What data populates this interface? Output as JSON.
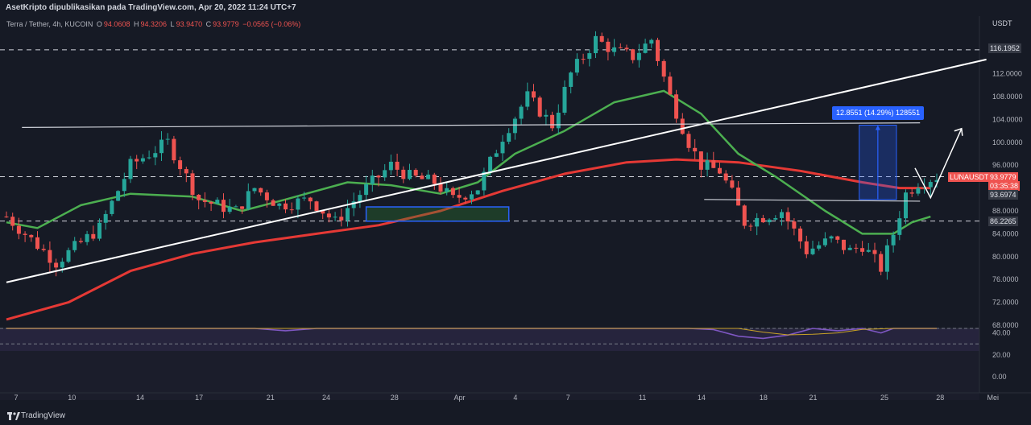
{
  "header": {
    "published_text": "AsetKripto dipublikasikan pada TradingView.com, Apr 20, 2022 11:24 UTC+7"
  },
  "legend": {
    "symbol": "Terra / Tether, 4h, KUCOIN",
    "open_label": "O",
    "open": "94.0608",
    "high_label": "H",
    "high": "94.3206",
    "low_label": "L",
    "low": "93.9470",
    "close_label": "C",
    "close": "93.9779",
    "change": "−0.0565 (−0.06%)"
  },
  "axis": {
    "currency": "USDT"
  },
  "price_labels": {
    "level_high": "116.1952",
    "current_symbol": "LUNAUSDT",
    "current_price": "93.9779",
    "countdown": "03:35:38",
    "level_mid": "93.6974",
    "level_low": "86.2265"
  },
  "measure": {
    "text": "12.8551 (14.29%) 128551"
  },
  "footer": {
    "brand": "TradingView"
  },
  "colors": {
    "background": "#161a25",
    "up": "#26a69a",
    "down": "#ef5350",
    "ma_green": "#4caf50",
    "ma_red": "#e53935",
    "rsi": "#7e57c2",
    "measure": "#2962ff"
  },
  "chart_data": {
    "type": "candlestick",
    "price_axis": {
      "min": 68,
      "max": 120,
      "ticks": [
        "112.0000",
        "108.0000",
        "104.0000",
        "100.0000",
        "96.0000",
        "92.0000",
        "88.0000",
        "84.0000",
        "80.0000",
        "76.0000",
        "72.0000",
        "68.0000"
      ]
    },
    "rsi_axis": {
      "ticks": [
        "40.00",
        "20.00",
        "0.00"
      ],
      "bands": [
        30,
        70
      ]
    },
    "x_axis": {
      "labels": [
        "7",
        "10",
        "14",
        "17",
        "21",
        "24",
        "28",
        "Apr",
        "4",
        "7",
        "11",
        "14",
        "18",
        "21",
        "25",
        "28",
        "Mei"
      ]
    },
    "price_path": [
      [
        0,
        87
      ],
      [
        8,
        79
      ],
      [
        15,
        85
      ],
      [
        20,
        96
      ],
      [
        26,
        100
      ],
      [
        31,
        90
      ],
      [
        37,
        88
      ],
      [
        40,
        92
      ],
      [
        44,
        89
      ],
      [
        49,
        90
      ],
      [
        53,
        86
      ],
      [
        57,
        91
      ],
      [
        62,
        96
      ],
      [
        65,
        94
      ],
      [
        69,
        93
      ],
      [
        72,
        90
      ],
      [
        76,
        92
      ],
      [
        80,
        101
      ],
      [
        84,
        108
      ],
      [
        88,
        103
      ],
      [
        91,
        112
      ],
      [
        95,
        118
      ],
      [
        98,
        116
      ],
      [
        101,
        115
      ],
      [
        104,
        118
      ],
      [
        107,
        108
      ],
      [
        110,
        100
      ],
      [
        112,
        96
      ],
      [
        115,
        95
      ],
      [
        117,
        91
      ],
      [
        119,
        86
      ],
      [
        122,
        87
      ],
      [
        125,
        88
      ],
      [
        129,
        81
      ],
      [
        133,
        83
      ],
      [
        136,
        81
      ],
      [
        138,
        82
      ],
      [
        141,
        78
      ],
      [
        143,
        84
      ],
      [
        145,
        91
      ],
      [
        147,
        93
      ],
      [
        150,
        94
      ]
    ],
    "ma_green_path": [
      [
        0,
        86
      ],
      [
        5,
        85
      ],
      [
        12,
        89
      ],
      [
        20,
        91
      ],
      [
        30,
        90.5
      ],
      [
        38,
        88
      ],
      [
        45,
        90
      ],
      [
        55,
        93
      ],
      [
        62,
        92.5
      ],
      [
        70,
        91
      ],
      [
        76,
        93
      ],
      [
        82,
        98
      ],
      [
        90,
        102
      ],
      [
        98,
        107
      ],
      [
        106,
        109
      ],
      [
        112,
        105
      ],
      [
        118,
        98
      ],
      [
        124,
        94
      ],
      [
        132,
        88
      ],
      [
        138,
        84
      ],
      [
        143,
        84
      ],
      [
        146,
        86
      ],
      [
        149,
        87
      ]
    ],
    "ma_red_path": [
      [
        0,
        69
      ],
      [
        10,
        72
      ],
      [
        20,
        77.5
      ],
      [
        30,
        80.5
      ],
      [
        40,
        82.5
      ],
      [
        50,
        84
      ],
      [
        60,
        85.5
      ],
      [
        70,
        88
      ],
      [
        80,
        91.5
      ],
      [
        90,
        94.5
      ],
      [
        100,
        96.5
      ],
      [
        108,
        97
      ],
      [
        118,
        96.5
      ],
      [
        128,
        95
      ],
      [
        138,
        93
      ],
      [
        144,
        92
      ],
      [
        149,
        92
      ]
    ],
    "rsi_path": [
      [
        0,
        50
      ],
      [
        6,
        45
      ],
      [
        10,
        75
      ],
      [
        15,
        55
      ],
      [
        20,
        72
      ],
      [
        25,
        50
      ],
      [
        30,
        62
      ],
      [
        35,
        48
      ],
      [
        40,
        55
      ],
      [
        45,
        42
      ],
      [
        50,
        58
      ],
      [
        55,
        52
      ],
      [
        60,
        45
      ],
      [
        65,
        68
      ],
      [
        70,
        60
      ],
      [
        75,
        55
      ],
      [
        80,
        72
      ],
      [
        85,
        65
      ],
      [
        90,
        70
      ],
      [
        95,
        78
      ],
      [
        100,
        72
      ],
      [
        103,
        60
      ],
      [
        106,
        52
      ],
      [
        110,
        48
      ],
      [
        114,
        43
      ],
      [
        118,
        37
      ],
      [
        122,
        35
      ],
      [
        126,
        38
      ],
      [
        130,
        45
      ],
      [
        134,
        42
      ],
      [
        138,
        48
      ],
      [
        141,
        40
      ],
      [
        143,
        60
      ],
      [
        146,
        80
      ],
      [
        150,
        72
      ]
    ],
    "annotations": {
      "horizontal_levels": [
        116.1952,
        93.9779,
        86.2265
      ],
      "support_line": {
        "from": [
          2.5,
          102.6
        ],
        "to": [
          147.3,
          103.4
        ]
      },
      "lower_line": {
        "from": [
          112.5,
          90.0
        ],
        "to": [
          147.3,
          89.7
        ]
      },
      "trendline": {
        "from": [
          0,
          75.5
        ],
        "to": [
          158,
          114.5
        ]
      },
      "zone": {
        "from": [
          58,
          86.2
        ],
        "to": [
          81,
          88.7
        ]
      },
      "measure": {
        "from": [
          137.5,
          90
        ],
        "to": [
          143.5,
          103
        ],
        "value": "12.8551 (14.29%)"
      },
      "projection": {
        "points": [
          [
            146.5,
            95.5
          ],
          [
            149,
            90.3
          ],
          [
            154,
            102.4
          ]
        ]
      }
    }
  }
}
